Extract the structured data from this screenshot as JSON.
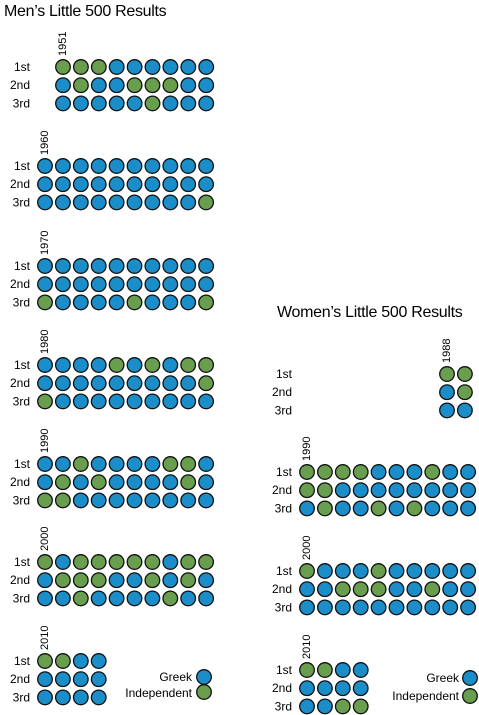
{
  "colors": {
    "greek": "#1b8ec9",
    "independent": "#6a9e4f",
    "stroke": "#111111"
  },
  "labels": {
    "first": "1st",
    "second": "2nd",
    "third": "3rd"
  },
  "legend": {
    "greek": "Greek",
    "independent": "Independent"
  },
  "chart_data": [
    {
      "type": "table",
      "title": "Men’s Little 500 Results",
      "encoding": "G = Greek winner, I = Independent winner; one column per year",
      "decades": [
        {
          "label": "1951",
          "start_year": 1951,
          "first": [
            "I",
            "I",
            "I",
            "G",
            "G",
            "G",
            "G",
            "G",
            "G"
          ],
          "second": [
            "G",
            "I",
            "G",
            "G",
            "I",
            "I",
            "I",
            "G",
            "G"
          ],
          "third": [
            "G",
            "G",
            "G",
            "G",
            "G",
            "I",
            "G",
            "G",
            "G"
          ]
        },
        {
          "label": "1960",
          "start_year": 1960,
          "first": [
            "G",
            "G",
            "G",
            "G",
            "G",
            "G",
            "G",
            "G",
            "G",
            "G"
          ],
          "second": [
            "G",
            "G",
            "G",
            "G",
            "G",
            "G",
            "G",
            "G",
            "G",
            "G"
          ],
          "third": [
            "G",
            "G",
            "G",
            "G",
            "G",
            "G",
            "G",
            "G",
            "G",
            "I"
          ]
        },
        {
          "label": "1970",
          "start_year": 1970,
          "first": [
            "G",
            "G",
            "G",
            "G",
            "G",
            "G",
            "G",
            "G",
            "G",
            "G"
          ],
          "second": [
            "G",
            "G",
            "G",
            "G",
            "G",
            "G",
            "G",
            "G",
            "G",
            "G"
          ],
          "third": [
            "I",
            "G",
            "G",
            "G",
            "G",
            "I",
            "G",
            "G",
            "G",
            "I"
          ]
        },
        {
          "label": "1980",
          "start_year": 1980,
          "first": [
            "G",
            "G",
            "G",
            "G",
            "I",
            "G",
            "I",
            "G",
            "I",
            "I"
          ],
          "second": [
            "G",
            "G",
            "G",
            "G",
            "G",
            "G",
            "G",
            "G",
            "G",
            "I"
          ],
          "third": [
            "I",
            "G",
            "G",
            "G",
            "G",
            "G",
            "G",
            "G",
            "G",
            "G"
          ]
        },
        {
          "label": "1990",
          "start_year": 1990,
          "first": [
            "G",
            "G",
            "I",
            "G",
            "G",
            "G",
            "G",
            "I",
            "I",
            "G"
          ],
          "second": [
            "G",
            "I",
            "G",
            "I",
            "G",
            "G",
            "G",
            "G",
            "I",
            "G"
          ],
          "third": [
            "I",
            "I",
            "G",
            "G",
            "G",
            "G",
            "G",
            "G",
            "G",
            "G"
          ]
        },
        {
          "label": "2000",
          "start_year": 2000,
          "first": [
            "I",
            "G",
            "I",
            "I",
            "I",
            "I",
            "I",
            "G",
            "I",
            "I"
          ],
          "second": [
            "G",
            "I",
            "I",
            "I",
            "G",
            "G",
            "I",
            "G",
            "I",
            "G"
          ],
          "third": [
            "G",
            "G",
            "I",
            "G",
            "G",
            "G",
            "G",
            "I",
            "G",
            "G"
          ]
        },
        {
          "label": "2010",
          "start_year": 2010,
          "first": [
            "I",
            "I",
            "G",
            "G"
          ],
          "second": [
            "G",
            "G",
            "G",
            "G"
          ],
          "third": [
            "G",
            "G",
            "G",
            "G"
          ]
        }
      ]
    },
    {
      "type": "table",
      "title": "Women’s Little 500 Results",
      "encoding": "G = Greek winner, I = Independent winner; one column per year",
      "decades": [
        {
          "label": "1988",
          "start_year": 1988,
          "first": [
            "I",
            "I"
          ],
          "second": [
            "G",
            "I"
          ],
          "third": [
            "G",
            "G"
          ]
        },
        {
          "label": "1990",
          "start_year": 1990,
          "first": [
            "I",
            "I",
            "I",
            "I",
            "G",
            "G",
            "G",
            "I",
            "G",
            "G"
          ],
          "second": [
            "I",
            "I",
            "G",
            "G",
            "G",
            "G",
            "G",
            "G",
            "G",
            "G"
          ],
          "third": [
            "G",
            "I",
            "G",
            "G",
            "I",
            "G",
            "I",
            "G",
            "G",
            "G"
          ]
        },
        {
          "label": "2000",
          "start_year": 2000,
          "first": [
            "I",
            "G",
            "G",
            "G",
            "I",
            "G",
            "G",
            "G",
            "G",
            "G"
          ],
          "second": [
            "G",
            "G",
            "I",
            "I",
            "I",
            "G",
            "G",
            "I",
            "G",
            "G"
          ],
          "third": [
            "G",
            "G",
            "G",
            "G",
            "G",
            "G",
            "G",
            "G",
            "G",
            "G"
          ]
        },
        {
          "label": "2010",
          "start_year": 2010,
          "first": [
            "I",
            "I",
            "G",
            "G"
          ],
          "second": [
            "G",
            "G",
            "G",
            "G"
          ],
          "third": [
            "G",
            "G",
            "I",
            "I"
          ]
        }
      ]
    }
  ]
}
